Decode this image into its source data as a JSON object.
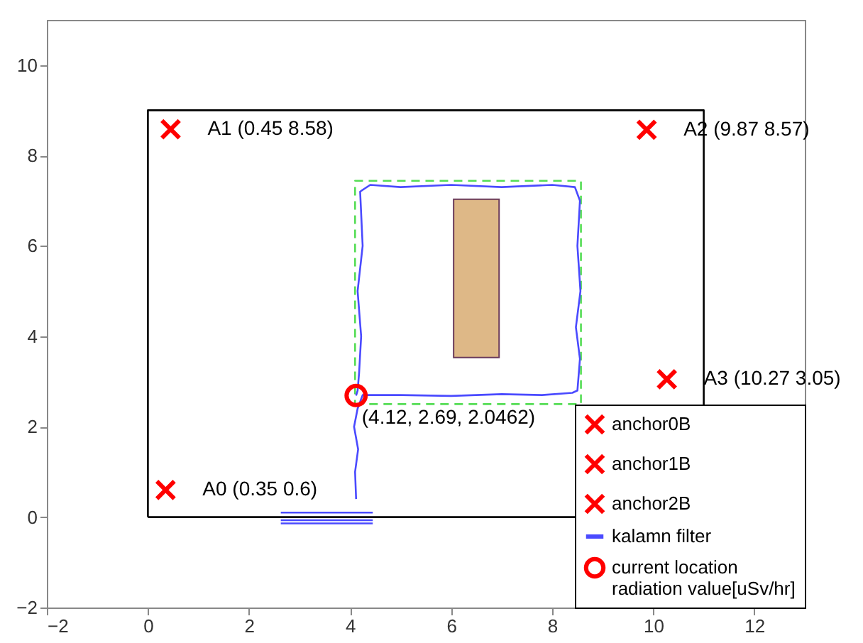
{
  "chart_data": {
    "type": "scatter",
    "xlim": [
      -2,
      13
    ],
    "ylim": [
      -2,
      11
    ],
    "xticks": [
      -2,
      0,
      2,
      4,
      6,
      8,
      10,
      12
    ],
    "yticks": [
      -2,
      0,
      2,
      4,
      6,
      8,
      10
    ],
    "legend": "bottom right",
    "series": [
      {
        "name": "anchor0B",
        "color": "#ff0000",
        "marker": "cross",
        "x": [
          0.35
        ],
        "values": [
          0.6
        ]
      },
      {
        "name": "anchor1B",
        "color": "#ff0000",
        "marker": "cross",
        "x": [
          0.45
        ],
        "values": [
          8.58
        ]
      },
      {
        "name": "anchor2B",
        "color": "#ff0000",
        "marker": "cross",
        "x": [
          9.87
        ],
        "values": [
          8.57
        ]
      },
      {
        "color": "#ff0000",
        "marker": "cross",
        "x": [
          10.27
        ],
        "values": [
          3.05
        ]
      },
      {
        "type": "line",
        "name": "kalamn filter",
        "color": "#4a4aff",
        "line_style": "solid",
        "x": [
          4.12,
          4.1,
          4.16,
          4.08,
          4.15,
          4.25,
          5,
          6,
          7,
          7.8,
          8.4,
          8.5,
          8.55,
          8.47,
          8.56,
          8.5,
          8.55,
          8.45,
          8,
          7,
          6,
          5,
          4.4,
          4.2,
          4.25,
          4.15,
          4.22,
          4.18,
          4.15,
          4.12
        ],
        "values": [
          0.4,
          1.0,
          1.5,
          2.0,
          2.4,
          2.7,
          2.7,
          2.68,
          2.72,
          2.7,
          2.75,
          2.8,
          3.5,
          4.2,
          5,
          6,
          7,
          7.3,
          7.35,
          7.3,
          7.35,
          7.3,
          7.35,
          7.2,
          6,
          5,
          4,
          3.2,
          2.8,
          2.69
        ]
      },
      {
        "name": "current location\n radiation value[uSv/hr]",
        "color": "#ff0000",
        "marker": "circle",
        "x": [
          4.12
        ],
        "values": [
          2.69
        ]
      }
    ],
    "annotations": [
      {
        "text": "A0 (0.35 0.6)",
        "x": 0.35,
        "y": 0.6
      },
      {
        "text": "A1 (0.45 8.58)",
        "x": 0.45,
        "y": 8.58
      },
      {
        "text": "A2 (9.87 8.57)",
        "x": 9.87,
        "y": 8.57
      },
      {
        "text": "A3 (10.27 3.05)",
        "x": 10.27,
        "y": 3.05
      },
      {
        "text": "(4.12, 2.69, 2.0462)",
        "x": 4.12,
        "y": 2.69
      }
    ]
  }
}
